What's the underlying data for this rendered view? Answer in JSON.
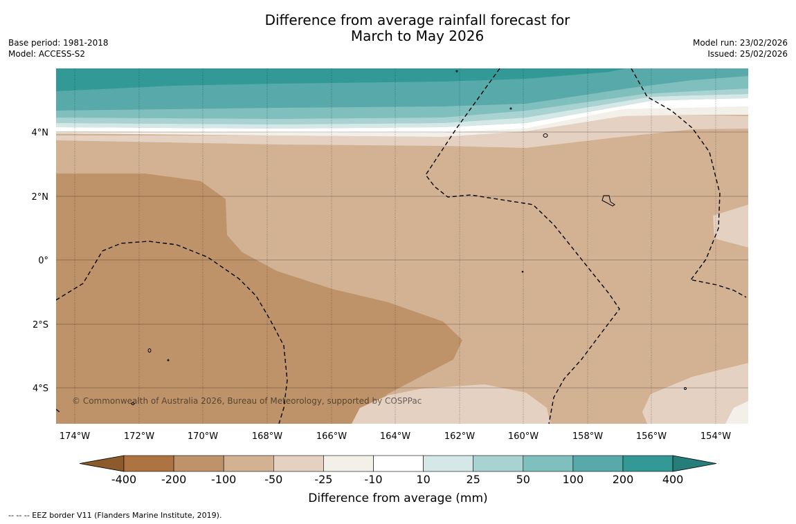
{
  "title": {
    "line1": "Difference from average rainfall forecast for",
    "line2": "March to May 2026"
  },
  "meta_left": {
    "base_period": "Base period: 1981-2018",
    "model": "Model: ACCESS-S2"
  },
  "meta_right": {
    "model_run": "Model run: 23/02/2026",
    "issued": "Issued: 25/02/2026"
  },
  "map": {
    "latitude_labels": [
      "4°N",
      "2°N",
      "0°",
      "2°S",
      "4°S"
    ],
    "longitude_labels": [
      "174°W",
      "172°W",
      "170°W",
      "168°W",
      "166°W",
      "164°W",
      "162°W",
      "160°W",
      "158°W",
      "156°W",
      "154°W"
    ],
    "copyright": "© Commonwealth of Australia 2026, Bureau of Meteorology, supported by COSPPac"
  },
  "colorbar": {
    "tick_labels": [
      "-400",
      "-200",
      "-100",
      "-50",
      "-25",
      "-10",
      "10",
      "25",
      "50",
      "100",
      "200",
      "400"
    ],
    "colors": [
      "#8c5a2b",
      "#ad7442",
      "#bf9369",
      "#d3b294",
      "#e5d1c1",
      "#f3efe9",
      "#ffffff",
      "#d4e9e7",
      "#a9d3d2",
      "#7fbfbe",
      "#57aaa9",
      "#339996",
      "#267e7b"
    ],
    "label": "Difference from average (mm)"
  },
  "footnote": "--  --  -- EEZ border V11 (Flanders Marine Institute, 2019)."
}
